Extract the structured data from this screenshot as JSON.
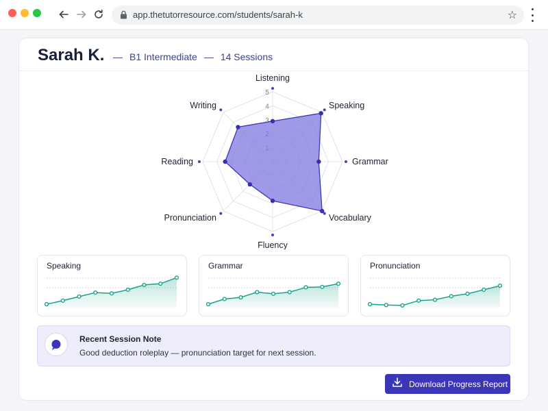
{
  "browser": {
    "url": "app.thetutorresource.com/students/sarah-k"
  },
  "student": {
    "name": "Sarah K.",
    "separator": "—",
    "level": "B1 Intermediate",
    "sessions": "14 Sessions"
  },
  "chart_data": [
    {
      "type": "radar",
      "axes": [
        "Listening",
        "Speaking",
        "Grammar",
        "Vocabulary",
        "Fluency",
        "Pronunciation",
        "Reading",
        "Writing"
      ],
      "values": [
        2.9,
        4.9,
        3.3,
        5.0,
        2.8,
        2.3,
        3.4,
        3.5
      ],
      "scale_ticks": [
        "1",
        "2",
        "3",
        "4",
        "5"
      ],
      "range": [
        0,
        5
      ],
      "color": "#5a4fd6"
    },
    {
      "type": "line",
      "title": "Speaking",
      "values": [
        1.0,
        1.9,
        2.9,
        3.9,
        3.7,
        4.6,
        5.8,
        6.1,
        7.6
      ],
      "color": "#1aa38a"
    },
    {
      "type": "line",
      "title": "Grammar",
      "values": [
        1.0,
        2.3,
        2.7,
        4.0,
        3.6,
        4.0,
        5.2,
        5.3,
        6.1
      ],
      "color": "#1aa38a"
    },
    {
      "type": "line",
      "title": "Pronunciation",
      "values": [
        1.0,
        0.8,
        0.7,
        1.9,
        2.1,
        3.0,
        3.6,
        4.6,
        5.6
      ],
      "color": "#1aa38a"
    }
  ],
  "note": {
    "title": "Recent Session Note",
    "body": "Good deduction roleplay — pronunciation target for next session."
  },
  "actions": {
    "download_label": "Download Progress Report"
  },
  "colors": {
    "accent": "#3b35b8",
    "radar_fill": "#7f78e0",
    "trend": "#1aa38a"
  }
}
